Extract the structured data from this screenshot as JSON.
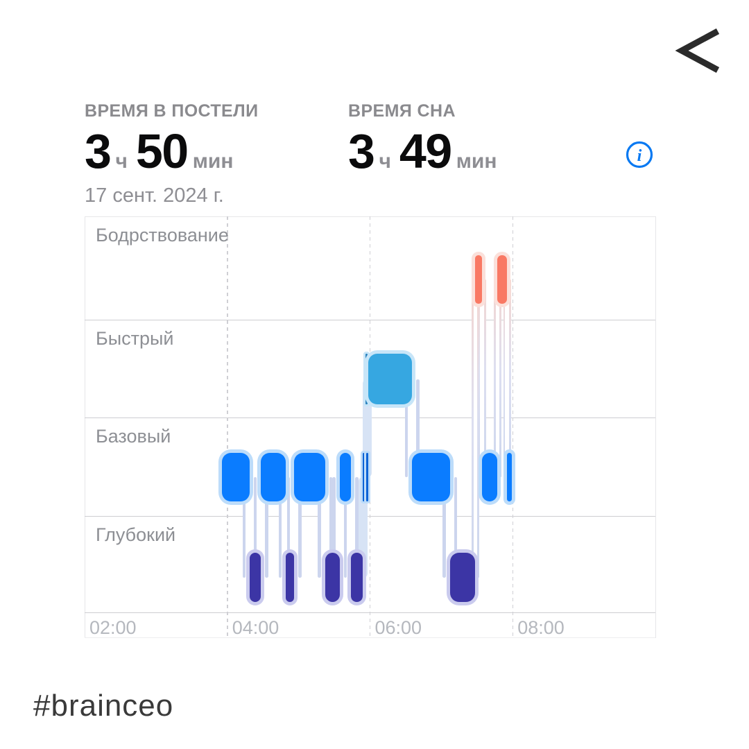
{
  "page": {
    "hashtag": "#brainceo",
    "background": "#ffffff"
  },
  "nav": {
    "back_icon": "chevron-left-icon",
    "back_color": "#2b2b2b"
  },
  "stats": {
    "in_bed": {
      "label": "ВРЕМЯ В ПОСТЕЛИ",
      "hours": "3",
      "hours_unit": "ч",
      "minutes": "50",
      "minutes_unit": "мин"
    },
    "asleep": {
      "label": "ВРЕМЯ СНА",
      "hours": "3",
      "hours_unit": "ч",
      "minutes": "49",
      "minutes_unit": "мин"
    },
    "date": "17 сент. 2024 г.",
    "info_icon": "info-circle-icon",
    "info_color": "#0879f2"
  },
  "chart_data": {
    "type": "sleep-stages-timeline",
    "title": "",
    "x_axis": {
      "start": "02:00",
      "end": "10:00",
      "start_min": 120,
      "end_min": 600,
      "ticks": [
        {
          "label": "02:00",
          "min": 120
        },
        {
          "label": "04:00",
          "min": 240
        },
        {
          "label": "06:00",
          "min": 360
        },
        {
          "label": "08:00",
          "min": 480
        }
      ]
    },
    "rows": [
      {
        "key": "awake",
        "label": "Бодрствование",
        "color": "#f97964",
        "halo": "#fbe0da"
      },
      {
        "key": "rem",
        "label": "Быстрый",
        "color": "#36a7e1",
        "halo": "#c7e5f8"
      },
      {
        "key": "core",
        "label": "Базовый",
        "color": "#0a7cff",
        "halo": "#bcdcfa"
      },
      {
        "key": "deep",
        "label": "Глубокий",
        "color": "#3c35a5",
        "halo": "#cacbee"
      }
    ],
    "segments": [
      {
        "stage": "core",
        "start": "03:55",
        "end": "04:19",
        "start_min": 235.5,
        "end_min": 259
      },
      {
        "stage": "deep",
        "start": "04:19",
        "end": "04:28",
        "start_min": 259,
        "end_min": 268.4
      },
      {
        "stage": "core",
        "start": "04:28",
        "end": "04:49",
        "start_min": 268.4,
        "end_min": 289.4
      },
      {
        "stage": "deep",
        "start": "04:49",
        "end": "04:56",
        "start_min": 289.4,
        "end_min": 296.4
      },
      {
        "stage": "core",
        "start": "04:56",
        "end": "05:22",
        "start_min": 296.4,
        "end_min": 322.1
      },
      {
        "stage": "deep",
        "start": "05:22",
        "end": "05:35",
        "start_min": 322.1,
        "end_min": 334.6
      },
      {
        "stage": "core",
        "start": "05:35",
        "end": "05:44",
        "start_min": 334.6,
        "end_min": 344.2
      },
      {
        "stage": "deep",
        "start": "05:44",
        "end": "05:54",
        "start_min": 344.2,
        "end_min": 353.9
      },
      {
        "stage": "core",
        "start": "05:54",
        "end": "05:56",
        "start_min": 353.9,
        "end_min": 355.7,
        "thin": true
      },
      {
        "stage": "core",
        "start": "05:57",
        "end": "05:58",
        "start_min": 356.8,
        "end_min": 358.5,
        "thin": true
      },
      {
        "stage": "rem",
        "start": "05:56",
        "end": "05:58",
        "start_min": 356.3,
        "end_min": 357.8,
        "thin": true
      },
      {
        "stage": "rem",
        "start": "05:58",
        "end": "06:35",
        "start_min": 358.5,
        "end_min": 395.3
      },
      {
        "stage": "core",
        "start": "06:35",
        "end": "07:07",
        "start_min": 395.3,
        "end_min": 427.3
      },
      {
        "stage": "deep",
        "start": "07:07",
        "end": "07:29",
        "start_min": 427.3,
        "end_min": 448.6
      },
      {
        "stage": "awake",
        "start": "07:29",
        "end": "07:34",
        "start_min": 448.6,
        "end_min": 454.2
      },
      {
        "stage": "core",
        "start": "07:34",
        "end": "07:47",
        "start_min": 454.2,
        "end_min": 467.3
      },
      {
        "stage": "awake",
        "start": "07:47",
        "end": "07:55",
        "start_min": 467.3,
        "end_min": 475.2
      },
      {
        "stage": "core",
        "start": "07:55",
        "end": "07:59",
        "start_min": 475.2,
        "end_min": 479.3
      }
    ],
    "style": {
      "border": "#e6e6e9",
      "border_faint": "#ededef",
      "grid_h": "#cdcdd1",
      "grid_dash": "#cfcfd4",
      "tube_wall": "#ccd5ee",
      "tube_solid": "#d7e3f5",
      "tube_wall_awake": "linear-gradient(180deg,#f6d5ce 0%,#dddff0 45%,#ccd6ee 100%)"
    },
    "legend_position": "row-labels-left",
    "grid": "dashed-vertical-hour-lines"
  }
}
